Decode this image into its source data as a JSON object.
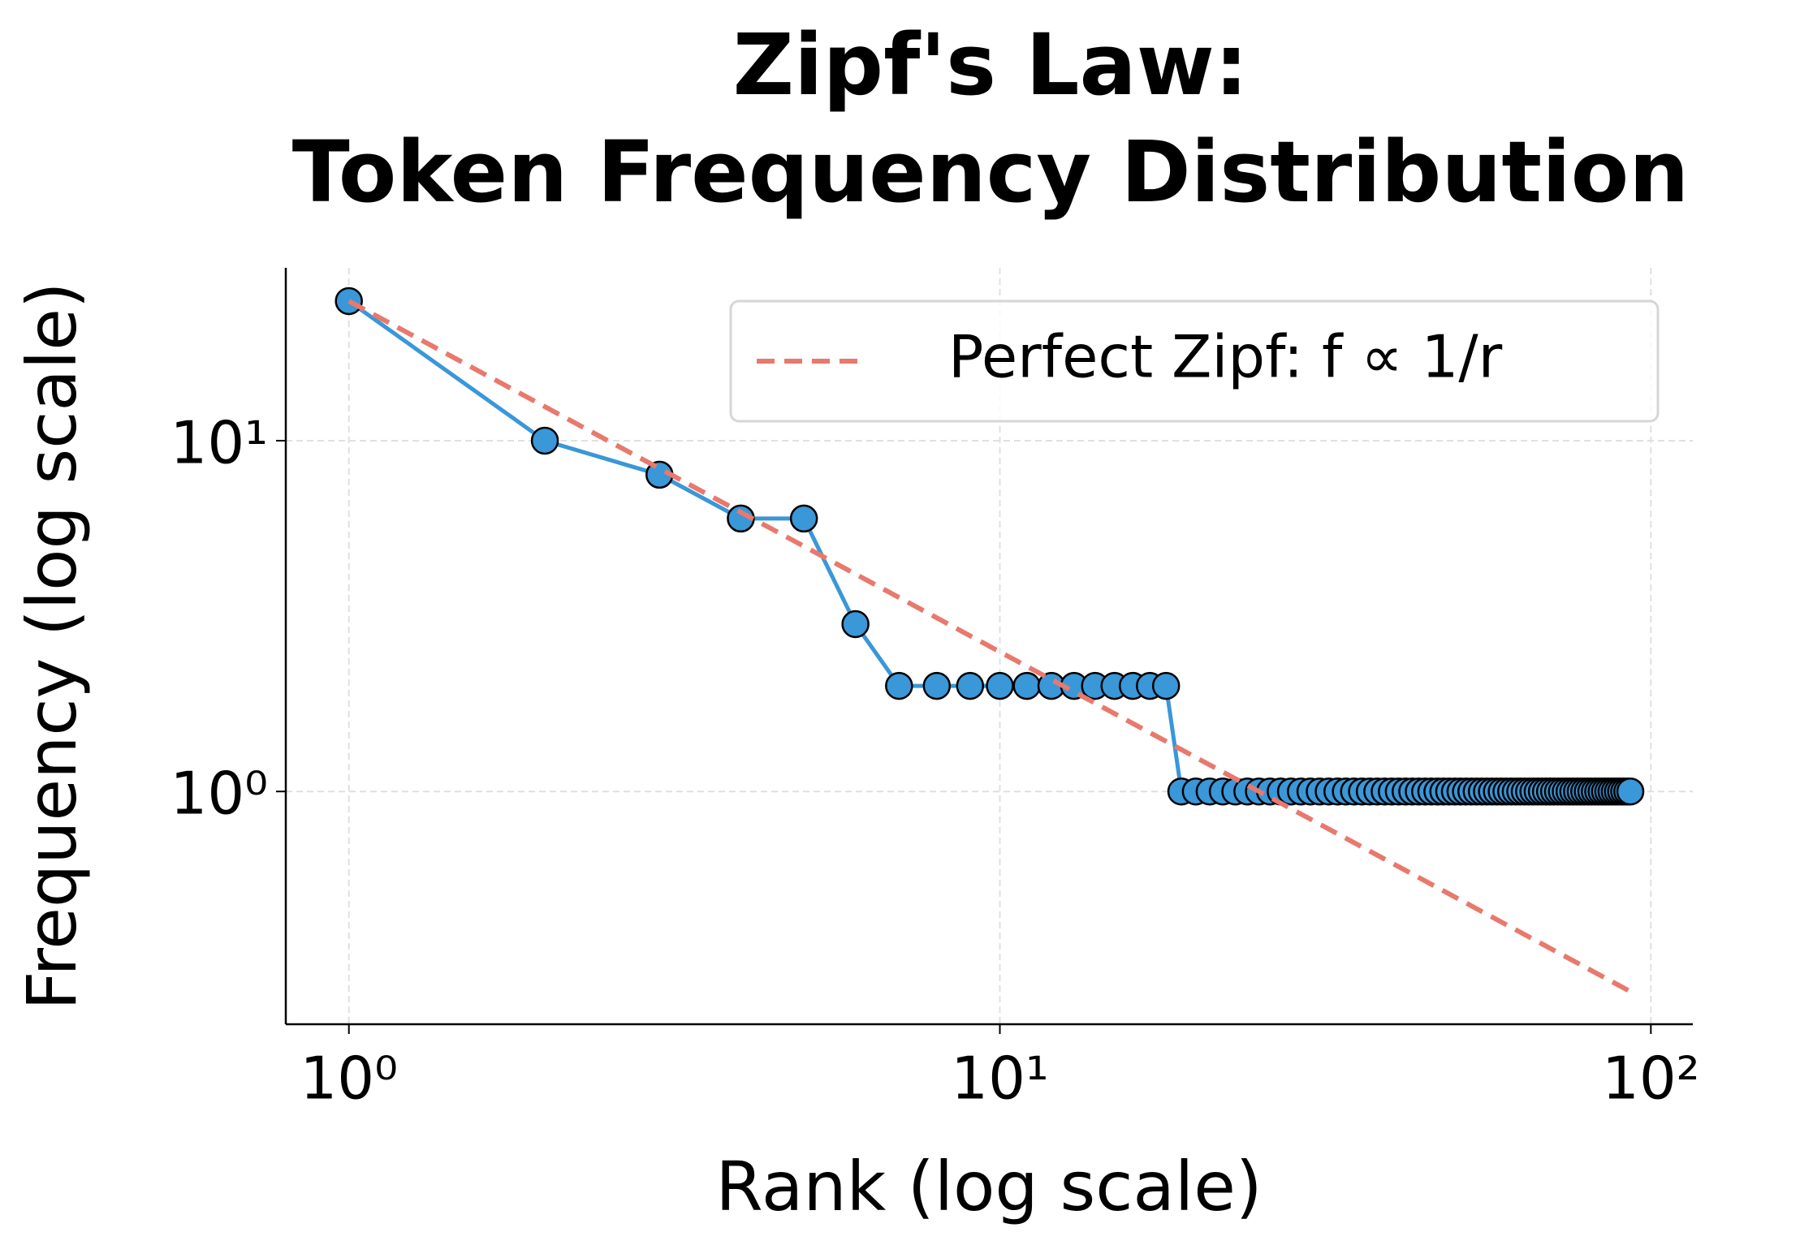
{
  "chart_data": {
    "type": "line",
    "title": "Zipf's Law:\nToken Frequency Distribution",
    "x_label": "Rank (log scale)",
    "y_label": "Frequency (log scale)",
    "xscale": "log",
    "yscale": "log",
    "xlim": [
      0.8,
      116
    ],
    "ylim": [
      0.217,
      31.1
    ],
    "xticks": [
      {
        "value": 1,
        "label": "10⁰"
      },
      {
        "value": 10,
        "label": "10¹"
      },
      {
        "value": 100,
        "label": "10²"
      }
    ],
    "yticks": [
      {
        "value": 1,
        "label": "10⁰"
      },
      {
        "value": 10,
        "label": "10¹"
      }
    ],
    "grid": true,
    "legend": "upper right",
    "series": [
      {
        "color": "#3a97d8",
        "marker": true,
        "x": [
          1,
          2,
          3,
          4,
          5,
          6,
          7,
          8,
          9,
          10,
          11,
          12,
          13,
          14,
          15,
          16,
          17,
          18,
          19,
          20,
          21,
          22,
          23,
          24,
          25,
          26,
          27,
          28,
          29,
          30,
          31,
          32,
          33,
          34,
          35,
          36,
          37,
          38,
          39,
          40,
          41,
          42,
          43,
          44,
          45,
          46,
          47,
          48,
          49,
          50,
          51,
          52,
          53,
          54,
          55,
          56,
          57,
          58,
          59,
          60,
          61,
          62,
          63,
          64,
          65,
          66,
          67,
          68,
          69,
          70,
          71,
          72,
          73,
          74,
          75,
          76,
          77,
          78,
          79,
          80,
          81,
          82,
          83,
          84,
          85,
          86,
          87,
          88,
          89,
          90,
          91,
          92,
          93
        ],
        "values": [
          25,
          10,
          8,
          6,
          6,
          3,
          2,
          2,
          2,
          2,
          2,
          2,
          2,
          2,
          2,
          2,
          2,
          2,
          1,
          1,
          1,
          1,
          1,
          1,
          1,
          1,
          1,
          1,
          1,
          1,
          1,
          1,
          1,
          1,
          1,
          1,
          1,
          1,
          1,
          1,
          1,
          1,
          1,
          1,
          1,
          1,
          1,
          1,
          1,
          1,
          1,
          1,
          1,
          1,
          1,
          1,
          1,
          1,
          1,
          1,
          1,
          1,
          1,
          1,
          1,
          1,
          1,
          1,
          1,
          1,
          1,
          1,
          1,
          1,
          1,
          1,
          1,
          1,
          1,
          1,
          1,
          1,
          1,
          1,
          1,
          1,
          1,
          1,
          1,
          1,
          1,
          1,
          1
        ]
      },
      {
        "name": "Perfect Zipf: f ∝ 1/r",
        "color": "#e8796d",
        "dashed": true,
        "marker": false,
        "x": [
          1,
          93
        ],
        "values": [
          25,
          0.269
        ]
      }
    ]
  }
}
